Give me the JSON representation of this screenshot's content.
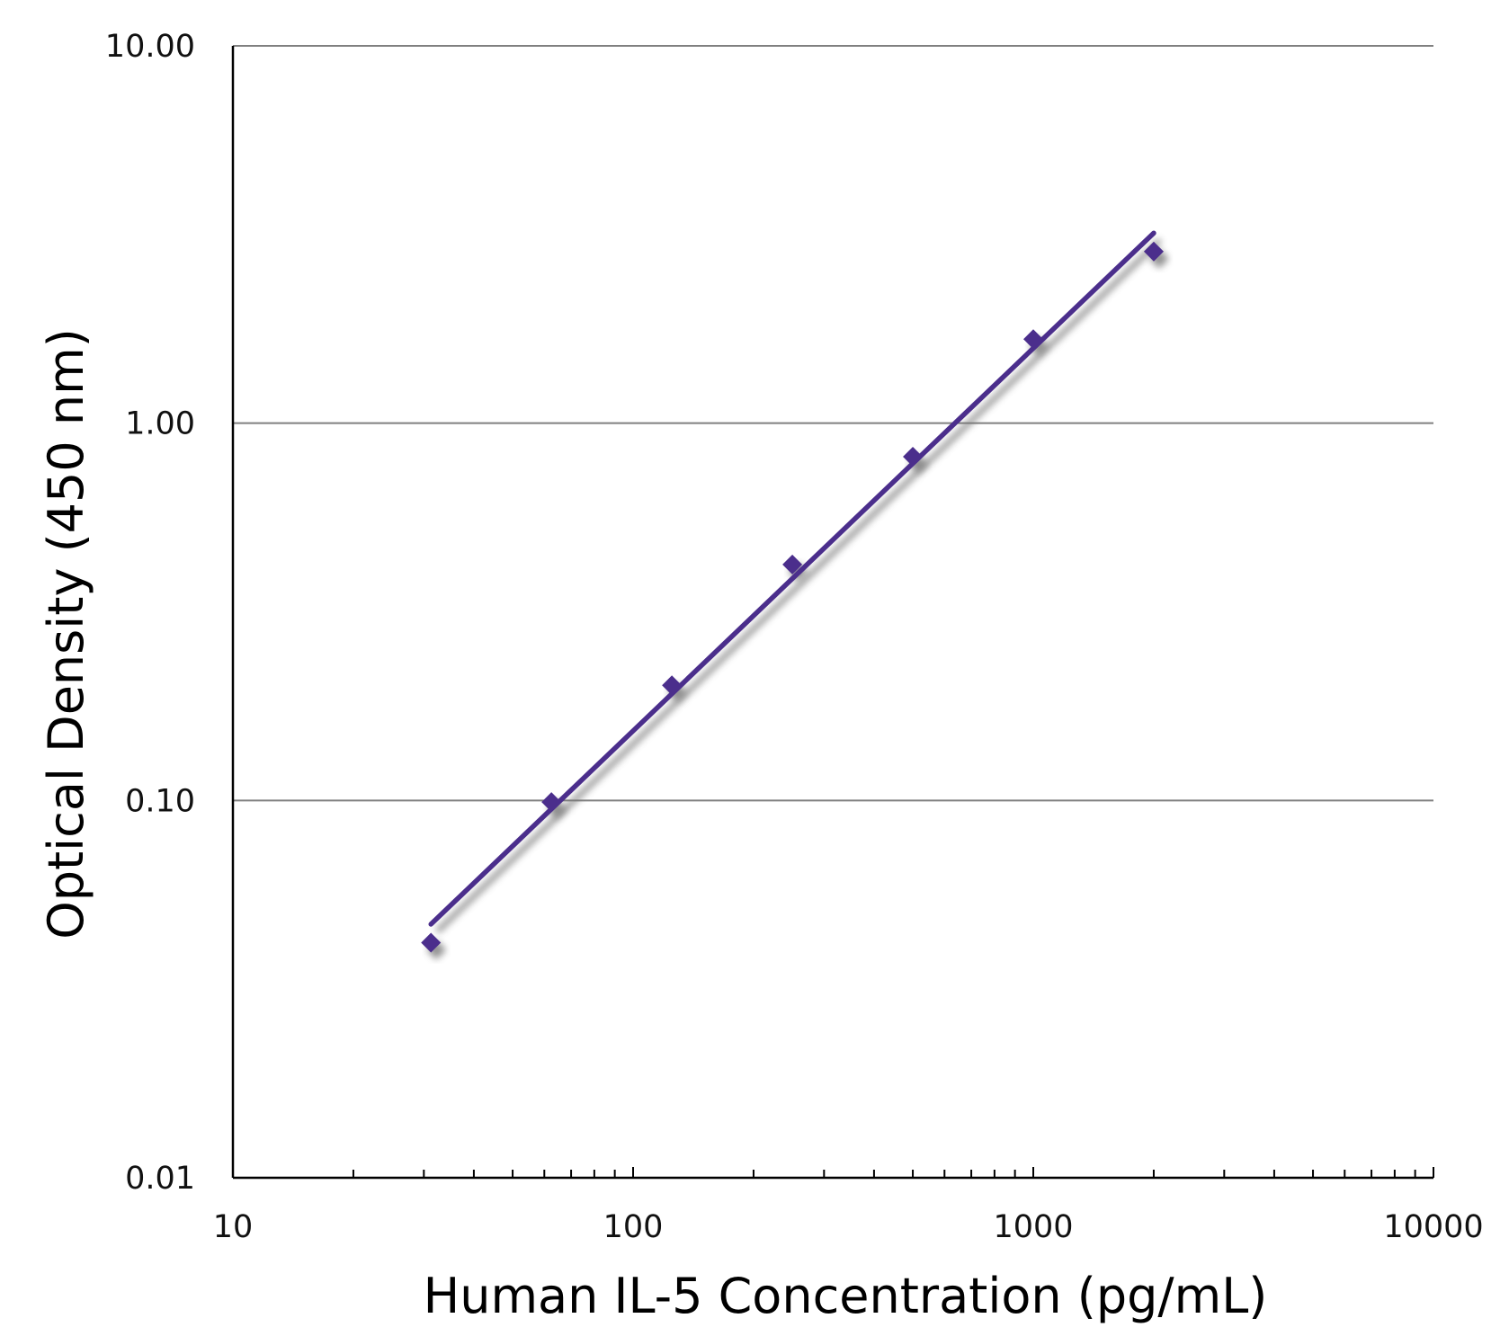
{
  "chart_data": {
    "type": "scatter",
    "title": "",
    "xlabel": "Human IL-5 Concentration (pg/mL)",
    "ylabel": "Optical Density (450 nm)",
    "x_scale": "log",
    "y_scale": "log",
    "xlim": [
      10,
      10000
    ],
    "ylim": [
      0.01,
      10
    ],
    "x_ticks": [
      "10",
      "100",
      "1000",
      "10000"
    ],
    "y_ticks": [
      "0.01",
      "0.10",
      "1.00",
      "10.00"
    ],
    "grid": "horizontal major",
    "legend": "none",
    "color": "#4b2e8c",
    "points": {
      "x": [
        31.25,
        62.5,
        125,
        250,
        500,
        1000,
        2000
      ],
      "y": [
        0.042,
        0.099,
        0.202,
        0.422,
        0.815,
        1.67,
        2.85
      ]
    },
    "fit_line": {
      "x": [
        31.25,
        2000
      ],
      "y": [
        0.047,
        3.19
      ]
    }
  }
}
